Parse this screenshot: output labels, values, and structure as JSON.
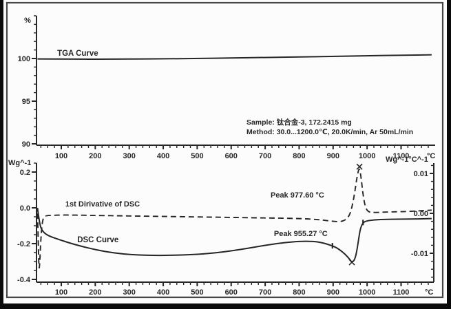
{
  "figure": {
    "ink": "#262626",
    "paper": "#fcfcfc",
    "frame_color": "#474747",
    "outer_background": "#0a0a0a"
  },
  "chart_data": [
    {
      "id": "tga_panel",
      "type": "line",
      "panel": "top",
      "ylabel": "%",
      "x_unit_label": "°C",
      "x_axis_range": [
        28,
        1195
      ],
      "x_major_ticks": [
        100,
        200,
        300,
        400,
        500,
        600,
        700,
        800,
        900,
        1000,
        1100
      ],
      "x_minor_step": 20,
      "y_major_ticks": [
        {
          "value": 100,
          "label": "100"
        },
        {
          "value": 95,
          "label": "95"
        },
        {
          "value": 90,
          "label": "90"
        }
      ],
      "y_minor_step": 1,
      "ylim": [
        89.9,
        105.0
      ],
      "series": [
        {
          "name": "TGA",
          "line_style": "solid",
          "x": [
            30,
            100,
            200,
            300,
            400,
            500,
            600,
            700,
            800,
            900,
            1000,
            1100,
            1190
          ],
          "y": [
            99.95,
            99.93,
            99.92,
            99.93,
            99.96,
            100.0,
            100.06,
            100.12,
            100.18,
            100.25,
            100.32,
            100.38,
            100.43
          ]
        }
      ],
      "annotations": [
        {
          "name": "tga-curve-label",
          "text": "TGA Curve",
          "x": 88,
          "y": 100.65,
          "anchor": "start",
          "size": 11.5
        },
        {
          "name": "sample-info-line",
          "text": "Sample: 钛合金-3, 172.2415 mg",
          "x": 645,
          "y": 92.6,
          "anchor": "start",
          "size": 10.5
        },
        {
          "name": "method-info-line",
          "text": "Method: 30.0...1200.0℃, 20.0K/min, Ar 50mL/min",
          "x": 645,
          "y": 91.45,
          "anchor": "start",
          "size": 10.5
        }
      ]
    },
    {
      "id": "dsc_panel",
      "type": "line",
      "panel": "bottom",
      "ylabel_left": "Wg^-1",
      "ylabel_right": "Wg^-1°C^-1",
      "x_unit_label": "°C",
      "x_axis_range": [
        28,
        1195
      ],
      "x_major_ticks": [
        100,
        200,
        300,
        400,
        500,
        600,
        700,
        800,
        900,
        1000,
        1100
      ],
      "x_minor_step": 20,
      "y_left_major_ticks": [
        {
          "value": 0.2,
          "label": "0.2"
        },
        {
          "value": 0.0,
          "label": "0.0"
        },
        {
          "value": -0.2,
          "label": "-0.2"
        },
        {
          "value": -0.4,
          "label": "-0.4"
        }
      ],
      "y_left_minor_step": 0.05,
      "y_left_lim": [
        -0.415,
        0.255
      ],
      "y_right_major_ticks": [
        {
          "value": 0.01,
          "label": "0.01"
        },
        {
          "value": 0.0,
          "label": "0.00"
        },
        {
          "value": -0.01,
          "label": "-0.01"
        }
      ],
      "y_right_minor_step": 0.002,
      "y_right_lim": [
        -0.0172,
        0.0126
      ],
      "series": [
        {
          "name": "DSC Curve",
          "axis": "left",
          "line_style": "solid",
          "x": [
            30,
            36,
            44,
            60,
            90,
            130,
            180,
            230,
            280,
            330,
            380,
            430,
            480,
            530,
            580,
            630,
            680,
            730,
            780,
            820,
            860,
            898,
            915,
            935,
            948,
            955.27,
            962,
            968,
            974,
            980,
            988,
            1000,
            1030,
            1070,
            1110,
            1150,
            1190
          ],
          "y": [
            0.0,
            -0.09,
            -0.13,
            -0.155,
            -0.175,
            -0.2,
            -0.225,
            -0.245,
            -0.258,
            -0.264,
            -0.266,
            -0.265,
            -0.262,
            -0.256,
            -0.246,
            -0.232,
            -0.216,
            -0.2,
            -0.19,
            -0.186,
            -0.19,
            -0.212,
            -0.228,
            -0.258,
            -0.286,
            -0.304,
            -0.295,
            -0.26,
            -0.19,
            -0.115,
            -0.082,
            -0.072,
            -0.066,
            -0.064,
            -0.063,
            -0.062,
            -0.06
          ]
        },
        {
          "name": "1st Dirivative of DSC",
          "axis": "right",
          "line_style": "dashed",
          "x": [
            30,
            32,
            34,
            36,
            40,
            45,
            52,
            70,
            110,
            180,
            260,
            340,
            420,
            500,
            580,
            660,
            740,
            800,
            850,
            890,
            912,
            928,
            940,
            950,
            958,
            965,
            971,
            977.6,
            983,
            989,
            996,
            1005,
            1020,
            1050,
            1090,
            1130,
            1165,
            1190
          ],
          "y": [
            0.0,
            -0.006,
            -0.0135,
            -0.0138,
            -0.006,
            -0.0015,
            -0.0006,
            -0.0005,
            -0.0004,
            -0.0005,
            -0.0006,
            -0.0007,
            -0.0008,
            -0.0009,
            -0.001,
            -0.0011,
            -0.0012,
            -0.0013,
            -0.0015,
            -0.0019,
            -0.0021,
            -0.002,
            -0.0014,
            -0.0002,
            0.0025,
            0.006,
            0.0095,
            0.0117,
            0.0085,
            0.004,
            0.0012,
            0.0003,
            0.0002,
            0.0003,
            0.0004,
            0.0005,
            0.0007,
            0.0008
          ]
        }
      ],
      "markers": [
        {
          "name": "derivative-peak-marker",
          "series": 1,
          "shape": "x",
          "x": 977.6,
          "y": 0.0117
        },
        {
          "name": "dsc-peak-marker",
          "series": 0,
          "shape": "x",
          "x": 955.27,
          "y": -0.304
        },
        {
          "name": "dsc-onset-marker",
          "series": 0,
          "shape": "tick",
          "x": 898,
          "y": -0.212
        },
        {
          "name": "dsc-endset-marker",
          "series": 0,
          "shape": "tick",
          "x": 988,
          "y": -0.082
        }
      ],
      "peaks": [
        {
          "series": "1st Dirivative of DSC",
          "temperature_c": 977.6
        },
        {
          "series": "DSC Curve",
          "temperature_c": 955.27
        }
      ],
      "annotations": [
        {
          "name": "derivative-curve-label",
          "text": "1st Dirivative of DSC",
          "x": 112,
          "y": 0.023,
          "anchor": "start",
          "size": 11
        },
        {
          "name": "dsc-curve-label",
          "text": "DSC Curve",
          "x": 147,
          "y": -0.177,
          "anchor": "start",
          "size": 11.5
        },
        {
          "name": "derivative-peak-label",
          "text": "Peak  977.60 °C",
          "x": 716,
          "y": 0.073,
          "anchor": "start",
          "size": 11
        },
        {
          "name": "dsc-peak-label",
          "text": "Peak  955.27 °C",
          "x": 726,
          "y": -0.142,
          "anchor": "start",
          "size": 11
        }
      ]
    }
  ]
}
